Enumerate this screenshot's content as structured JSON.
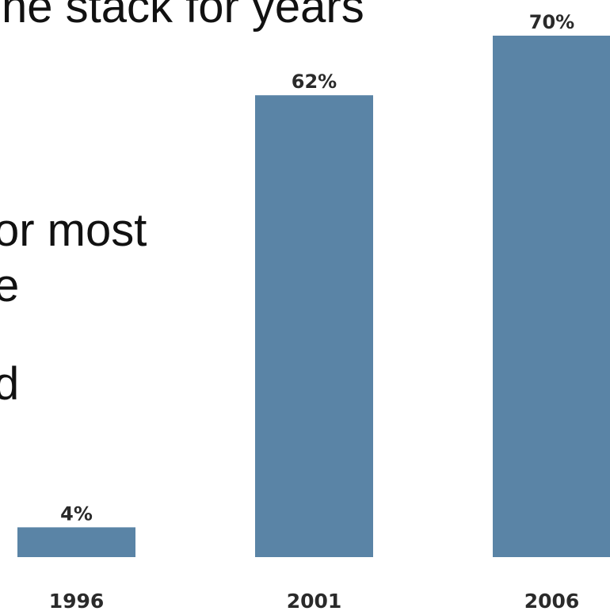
{
  "slide": {
    "lines": [
      "ne stack for years",
      "or most",
      "e",
      "d"
    ]
  },
  "colors": {
    "bar": "#5a84a6",
    "text": "#111111",
    "label": "#2a2a2a"
  },
  "chart_data": {
    "type": "bar",
    "categories": [
      "1996",
      "2001",
      "2006"
    ],
    "values": [
      4,
      62,
      70
    ],
    "value_labels": [
      "4%",
      "62%",
      "70%"
    ],
    "ylim": [
      0,
      70
    ],
    "grid": false
  }
}
